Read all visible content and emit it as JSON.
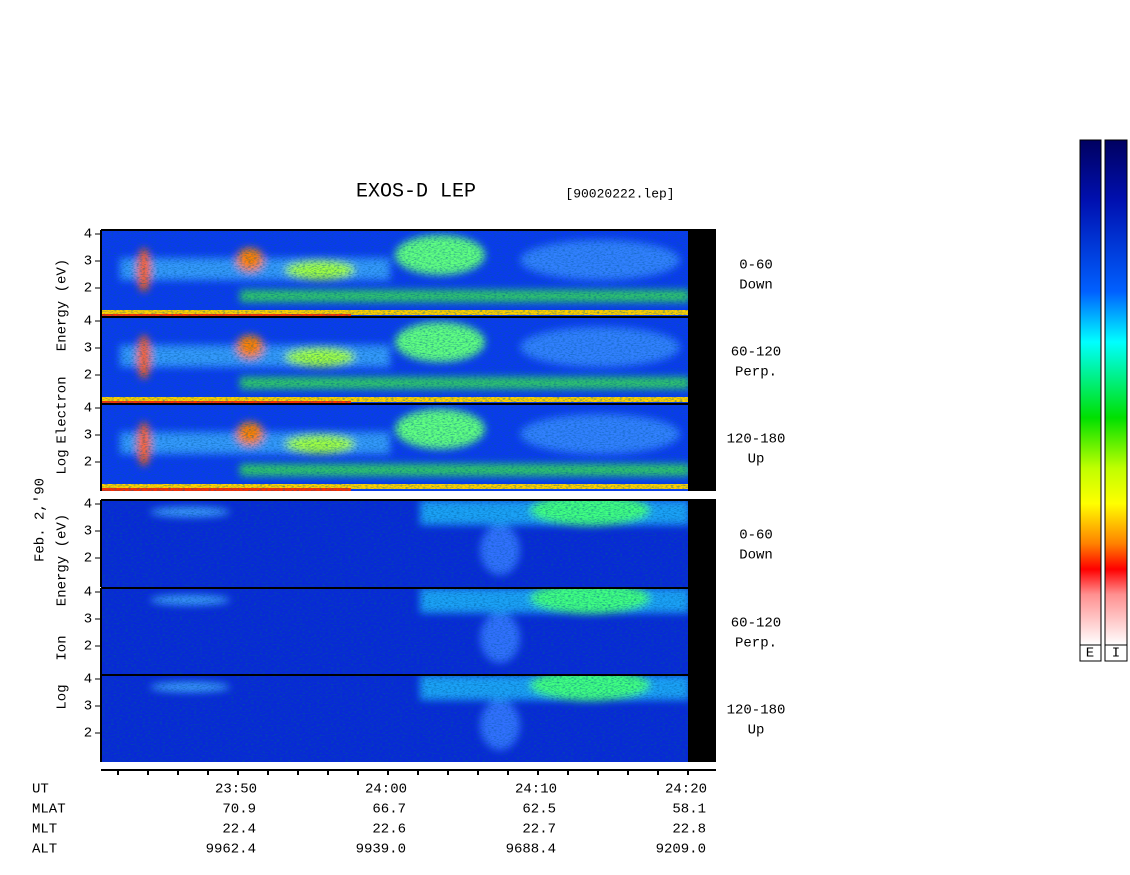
{
  "title": "EXOS-D LEP",
  "file": "[90020222.lep]",
  "date": "Feb. 2,'90",
  "electron_ylabel": [
    "Log",
    "Electron",
    "Energy (eV)"
  ],
  "ion_ylabel": [
    "Log",
    "Ion",
    "Energy (eV)"
  ],
  "yticks": [
    2,
    3,
    4
  ],
  "electron_panels": [
    [
      "0-60",
      "Down"
    ],
    [
      "60-120",
      "Perp."
    ],
    [
      "120-180",
      "Up"
    ]
  ],
  "ion_panels": [
    [
      "0-60",
      "Down"
    ],
    [
      "60-120",
      "Perp."
    ],
    [
      "120-180",
      "Up"
    ]
  ],
  "table": {
    "rows": [
      [
        "UT",
        "23:50",
        "24:00",
        "24:10",
        "24:20"
      ],
      [
        "MLAT",
        "70.9",
        "66.7",
        "62.5",
        "58.1"
      ],
      [
        "MLT",
        "22.4",
        "22.6",
        "22.7",
        "22.8"
      ],
      [
        "ALT",
        "9962.4",
        "9939.0",
        "9688.4",
        "9209.0"
      ]
    ]
  },
  "colorbar_labels": [
    "E",
    "I"
  ]
}
